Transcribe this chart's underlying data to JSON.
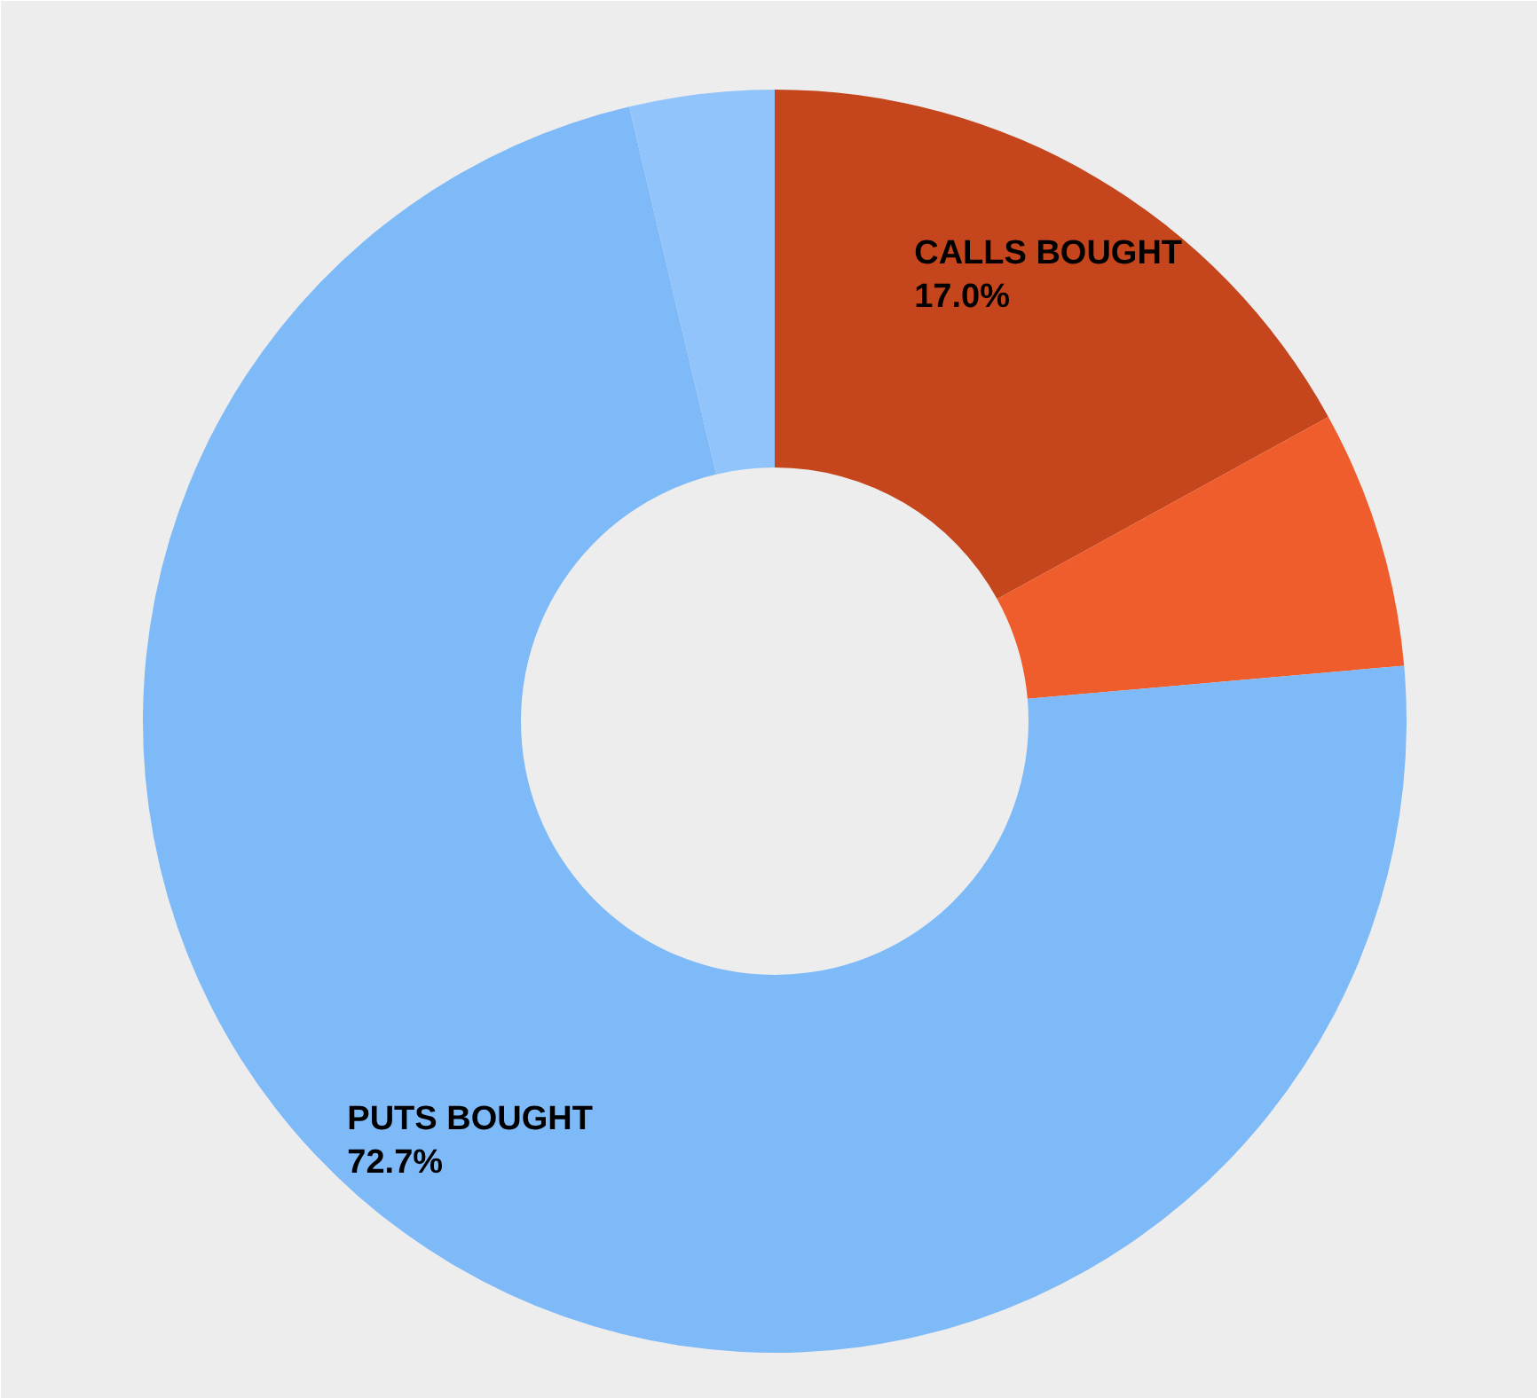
{
  "chart_data": {
    "type": "donut",
    "categories": [
      "CALLS BOUGHT",
      null,
      "PUTS BOUGHT",
      null
    ],
    "values": [
      17.0,
      6.6,
      72.7,
      3.7
    ],
    "colors": [
      "#c5451d",
      "#ef5d2c",
      "#7eb9f8",
      "#91c4fb"
    ],
    "value_labels": [
      "17.0%",
      null,
      "72.7%",
      null
    ]
  }
}
